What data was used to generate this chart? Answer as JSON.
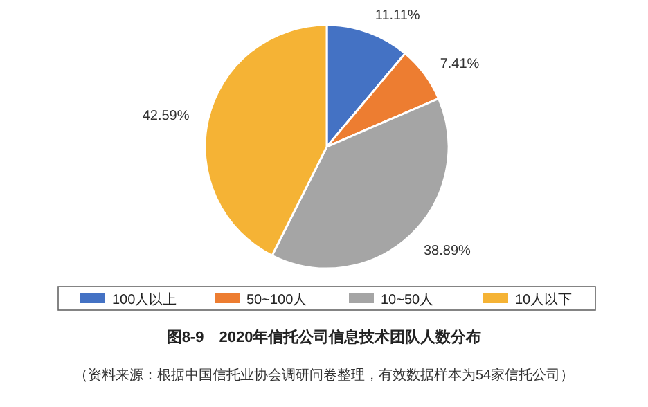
{
  "chart_data": {
    "type": "pie",
    "title": "图8-9　2020年信托公司信息技术团队人数分布",
    "annotations": [
      "（资料来源：根据中国信托业协会调研问卷整理，有效数据样本为54家信托公司）"
    ],
    "categories": [
      "100人以上",
      "50~100人",
      "10~50人",
      "10人以下"
    ],
    "values": [
      11.11,
      7.41,
      38.89,
      42.59
    ],
    "value_labels": [
      "11.11%",
      "7.41%",
      "38.89%",
      "42.59%"
    ],
    "colors": [
      "#4472c4",
      "#ed7d31",
      "#a5a5a5",
      "#f5b335"
    ],
    "legend": "bottom"
  }
}
